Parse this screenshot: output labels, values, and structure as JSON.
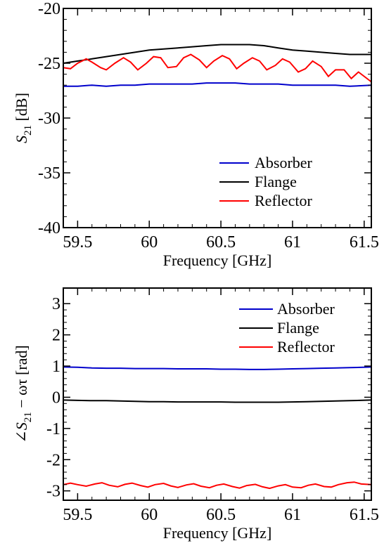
{
  "chart_data": [
    {
      "type": "line",
      "xlabel": "Frequency [GHz]",
      "ylabel_main": "S",
      "ylabel_sub": "21",
      "ylabel_unit": " [dB]",
      "xlim": [
        59.4,
        61.55
      ],
      "ylim": [
        -40,
        -20
      ],
      "xticks": [
        59.5,
        60,
        60.5,
        61,
        61.5
      ],
      "xtick_labels": [
        "59.5",
        "60",
        "60.5",
        "61",
        "61.5"
      ],
      "yticks": [
        -40,
        -35,
        -30,
        -25,
        -20
      ],
      "ytick_labels": [
        "-40",
        "-35",
        "-30",
        "-25",
        "-20"
      ],
      "legend_position": "lower-right",
      "series": [
        {
          "name": "Absorber",
          "color": "#0000cc",
          "x": [
            59.4,
            59.5,
            59.6,
            59.7,
            59.8,
            59.9,
            60.0,
            60.1,
            60.2,
            60.3,
            60.4,
            60.5,
            60.6,
            60.7,
            60.8,
            60.9,
            61.0,
            61.1,
            61.2,
            61.3,
            61.4,
            61.55
          ],
          "y": [
            -27.1,
            -27.1,
            -27.0,
            -27.1,
            -27.0,
            -27.0,
            -26.9,
            -26.9,
            -26.9,
            -26.9,
            -26.8,
            -26.8,
            -26.8,
            -26.9,
            -26.9,
            -26.9,
            -27.0,
            -27.0,
            -27.0,
            -27.0,
            -27.1,
            -27.0
          ]
        },
        {
          "name": "Flange",
          "color": "#000000",
          "x": [
            59.4,
            59.5,
            59.6,
            59.7,
            59.8,
            59.9,
            60.0,
            60.1,
            60.2,
            60.3,
            60.4,
            60.5,
            60.6,
            60.7,
            60.8,
            60.9,
            61.0,
            61.1,
            61.2,
            61.3,
            61.4,
            61.55
          ],
          "y": [
            -25.0,
            -24.8,
            -24.6,
            -24.4,
            -24.2,
            -24.0,
            -23.8,
            -23.7,
            -23.6,
            -23.5,
            -23.4,
            -23.3,
            -23.3,
            -23.3,
            -23.4,
            -23.6,
            -23.8,
            -23.9,
            -24.0,
            -24.1,
            -24.2,
            -24.2
          ]
        },
        {
          "name": "Reflector",
          "color": "#ff0000",
          "x": [
            59.4,
            59.45,
            59.5,
            59.56,
            59.6,
            59.66,
            59.7,
            59.76,
            59.82,
            59.87,
            59.92,
            59.98,
            60.03,
            60.08,
            60.13,
            60.19,
            60.24,
            60.29,
            60.35,
            60.4,
            60.45,
            60.51,
            60.56,
            60.61,
            60.66,
            60.72,
            60.77,
            60.82,
            60.88,
            60.93,
            60.98,
            61.04,
            61.09,
            61.14,
            61.2,
            61.25,
            61.3,
            61.36,
            61.41,
            61.46,
            61.55
          ],
          "y": [
            -25.4,
            -25.5,
            -25.0,
            -24.6,
            -24.9,
            -25.4,
            -25.6,
            -25.0,
            -24.5,
            -24.9,
            -25.6,
            -25.0,
            -24.4,
            -24.5,
            -25.4,
            -25.3,
            -24.5,
            -24.2,
            -24.7,
            -25.4,
            -24.8,
            -24.3,
            -24.6,
            -25.5,
            -25.0,
            -24.5,
            -24.8,
            -25.6,
            -25.2,
            -24.6,
            -24.9,
            -25.8,
            -25.5,
            -24.8,
            -25.3,
            -26.2,
            -25.6,
            -25.6,
            -26.4,
            -25.8,
            -26.7
          ]
        }
      ]
    },
    {
      "type": "line",
      "xlabel": "Frequency [GHz]",
      "ylabel": "∠S21 − ωτ [rad]",
      "ylabel_angle": "∠",
      "ylabel_main": "S",
      "ylabel_sub": "21",
      "ylabel_rest": " − ωτ [rad]",
      "xlim": [
        59.4,
        61.55
      ],
      "ylim": [
        -3.3,
        3.5
      ],
      "xticks": [
        59.5,
        60,
        60.5,
        61,
        61.5
      ],
      "xtick_labels": [
        "59.5",
        "60",
        "60.5",
        "61",
        "61.5"
      ],
      "yticks": [
        -3,
        -2,
        -1,
        0,
        1,
        2,
        3
      ],
      "ytick_labels": [
        "-3",
        "-2",
        "-1",
        "0",
        "1",
        "2",
        "3"
      ],
      "legend_position": "upper-right",
      "series": [
        {
          "name": "Absorber",
          "color": "#0000cc",
          "x": [
            59.4,
            59.5,
            59.6,
            59.7,
            59.8,
            59.9,
            60.0,
            60.1,
            60.2,
            60.3,
            60.4,
            60.5,
            60.6,
            60.7,
            60.8,
            60.9,
            61.0,
            61.1,
            61.2,
            61.3,
            61.4,
            61.55
          ],
          "y": [
            0.97,
            0.96,
            0.94,
            0.93,
            0.93,
            0.92,
            0.92,
            0.92,
            0.91,
            0.91,
            0.91,
            0.9,
            0.9,
            0.89,
            0.89,
            0.9,
            0.91,
            0.92,
            0.93,
            0.94,
            0.95,
            0.97
          ]
        },
        {
          "name": "Flange",
          "color": "#000000",
          "x": [
            59.4,
            59.5,
            59.6,
            59.7,
            59.8,
            59.9,
            60.0,
            60.1,
            60.2,
            60.3,
            60.4,
            60.5,
            60.6,
            60.7,
            60.8,
            60.9,
            61.0,
            61.1,
            61.2,
            61.3,
            61.4,
            61.55
          ],
          "y": [
            -0.09,
            -0.1,
            -0.11,
            -0.11,
            -0.12,
            -0.13,
            -0.14,
            -0.14,
            -0.15,
            -0.15,
            -0.15,
            -0.15,
            -0.16,
            -0.16,
            -0.16,
            -0.16,
            -0.15,
            -0.14,
            -0.13,
            -0.12,
            -0.11,
            -0.09
          ]
        },
        {
          "name": "Reflector",
          "color": "#ff0000",
          "x": [
            59.4,
            59.45,
            59.5,
            59.56,
            59.62,
            59.67,
            59.72,
            59.78,
            59.83,
            59.88,
            59.94,
            59.99,
            60.04,
            60.1,
            60.15,
            60.2,
            60.26,
            60.31,
            60.36,
            60.42,
            60.47,
            60.52,
            60.58,
            60.63,
            60.68,
            60.74,
            60.79,
            60.84,
            60.9,
            60.95,
            61.0,
            61.06,
            61.11,
            61.16,
            61.22,
            61.27,
            61.32,
            61.38,
            61.43,
            61.48,
            61.55
          ],
          "y": [
            -2.8,
            -2.75,
            -2.8,
            -2.85,
            -2.78,
            -2.74,
            -2.82,
            -2.87,
            -2.79,
            -2.75,
            -2.83,
            -2.88,
            -2.8,
            -2.76,
            -2.84,
            -2.89,
            -2.81,
            -2.77,
            -2.85,
            -2.9,
            -2.82,
            -2.78,
            -2.86,
            -2.91,
            -2.83,
            -2.79,
            -2.87,
            -2.92,
            -2.84,
            -2.8,
            -2.88,
            -2.9,
            -2.82,
            -2.78,
            -2.86,
            -2.88,
            -2.8,
            -2.74,
            -2.72,
            -2.78,
            -2.8
          ]
        }
      ]
    }
  ]
}
